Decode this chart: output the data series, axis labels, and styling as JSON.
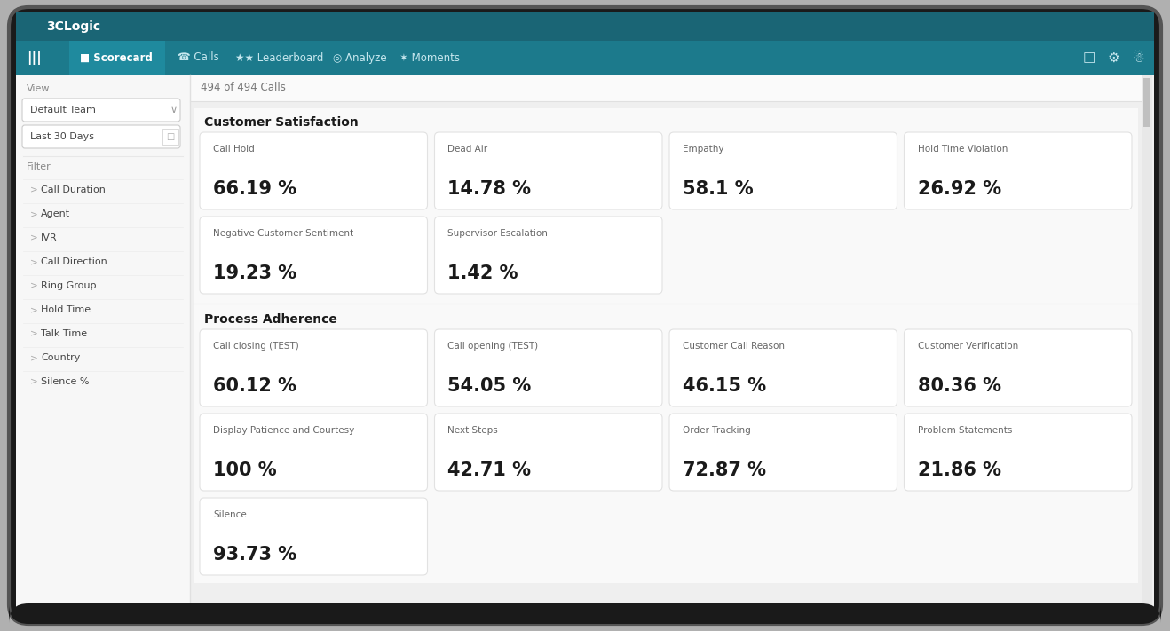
{
  "title": "3CLogic",
  "nav_bg": "#1c7a8a",
  "nav_title_row_bg": "#1a6e7d",
  "nav_tabs_row_bg": "#1c7a8a",
  "sidebar_bg": "#f7f7f7",
  "main_bg": "#eeeeee",
  "card_bg": "#ffffff",
  "card_border": "#e2e2e2",
  "device_bg": "#2a2a2a",
  "outer_bg": "#b0b0b0",
  "calls_info": "494 of 494 Calls",
  "view_label": "View",
  "view_team": "Default Team",
  "view_period": "Last 30 Days",
  "filter_label": "Filter",
  "filter_items": [
    "Call Duration",
    "Agent",
    "IVR",
    "Call Direction",
    "Ring Group",
    "Hold Time",
    "Talk Time",
    "Country",
    "Silence %"
  ],
  "section1_title": "Customer Satisfaction",
  "section2_title": "Process Adherence",
  "customer_satisfaction_row1": [
    {
      "label": "Call Hold",
      "value": "66.19 %"
    },
    {
      "label": "Dead Air",
      "value": "14.78 %"
    },
    {
      "label": "Empathy",
      "value": "58.1 %"
    },
    {
      "label": "Hold Time Violation",
      "value": "26.92 %"
    }
  ],
  "customer_satisfaction_row2": [
    {
      "label": "Negative Customer Sentiment",
      "value": "19.23 %"
    },
    {
      "label": "Supervisor Escalation",
      "value": "1.42 %"
    }
  ],
  "process_adherence_row1": [
    {
      "label": "Call closing (TEST)",
      "value": "60.12 %"
    },
    {
      "label": "Call opening (TEST)",
      "value": "54.05 %"
    },
    {
      "label": "Customer Call Reason",
      "value": "46.15 %"
    },
    {
      "label": "Customer Verification",
      "value": "80.36 %"
    }
  ],
  "process_adherence_row2": [
    {
      "label": "Display Patience and Courtesy",
      "value": "100 %"
    },
    {
      "label": "Next Steps",
      "value": "42.71 %"
    },
    {
      "label": "Order Tracking",
      "value": "72.87 %"
    },
    {
      "label": "Problem Statements",
      "value": "21.86 %"
    }
  ],
  "process_adherence_row3": [
    {
      "label": "Silence",
      "value": "93.73 %"
    }
  ],
  "label_color": "#666666",
  "value_color": "#1a1a1a",
  "section_title_color": "#1a1a1a",
  "sidebar_text_color": "#333333",
  "sidebar_label_color": "#888888"
}
